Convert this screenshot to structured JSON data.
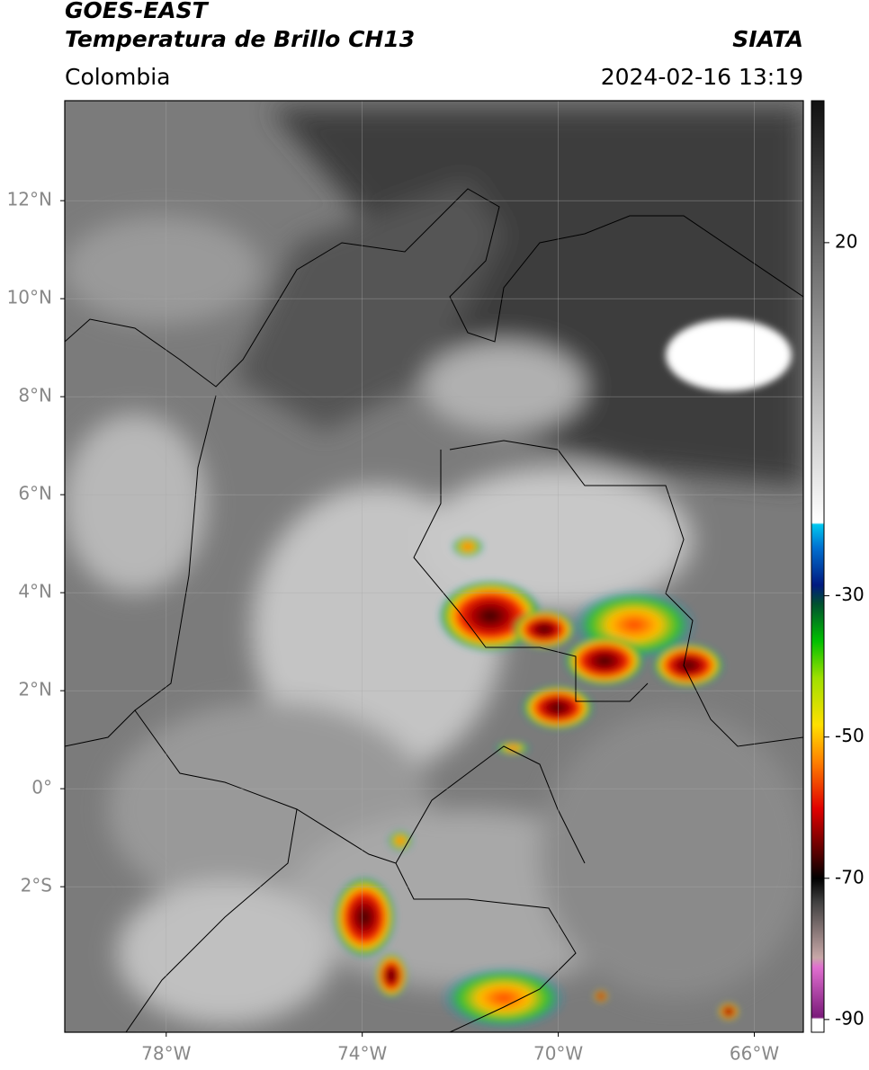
{
  "header": {
    "title": "GOES-EAST",
    "subtitle": "Temperatura de Brillo CH13",
    "source": "SIATA",
    "region": "Colombia",
    "datetime": "2024-02-16 13:19"
  },
  "map": {
    "xlim": [
      -80.07,
      -65.0
    ],
    "ylim": [
      -4.97,
      14.04
    ],
    "xticks": [
      {
        "value": -78,
        "label": "78°W"
      },
      {
        "value": -74,
        "label": "74°W"
      },
      {
        "value": -70,
        "label": "70°W"
      },
      {
        "value": -66,
        "label": "66°W"
      }
    ],
    "yticks": [
      {
        "value": 12,
        "label": "12°N"
      },
      {
        "value": 10,
        "label": "10°N"
      },
      {
        "value": 8,
        "label": "8°N"
      },
      {
        "value": 6,
        "label": "6°N"
      },
      {
        "value": 4,
        "label": "4°N"
      },
      {
        "value": 2,
        "label": "2°N"
      },
      {
        "value": 0,
        "label": "0°"
      },
      {
        "value": -2,
        "label": "2°S"
      }
    ],
    "grid": true
  },
  "colorbar": {
    "lim": [
      -91.8,
      40.1
    ],
    "ticks": [
      20,
      -30,
      -50,
      -70,
      -90
    ]
  }
}
